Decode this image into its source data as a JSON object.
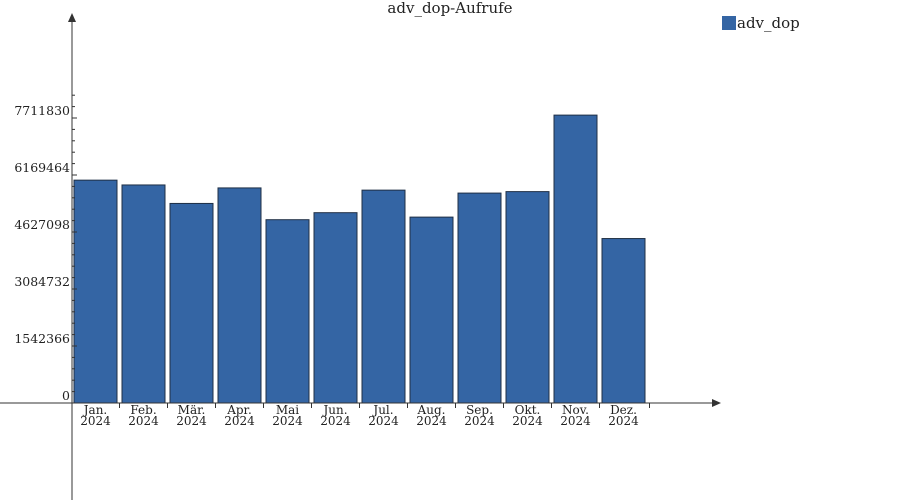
{
  "chart_data": {
    "type": "bar",
    "title": "adv_dop-Aufrufe",
    "xlabel": "",
    "ylabel": "",
    "categories": [
      [
        "Jan.",
        "2024"
      ],
      [
        "Feb.",
        "2024"
      ],
      [
        "Mär.",
        "2024"
      ],
      [
        "Apr.",
        "2024"
      ],
      [
        "Mai",
        "2024"
      ],
      [
        "Jun.",
        "2024"
      ],
      [
        "Jul.",
        "2024"
      ],
      [
        "Aug.",
        "2024"
      ],
      [
        "Sep.",
        "2024"
      ],
      [
        "Okt.",
        "2024"
      ],
      [
        "Nov.",
        "2024"
      ],
      [
        "Dez.",
        "2024"
      ]
    ],
    "series": [
      {
        "name": "adv_dop",
        "color": "#3465a4",
        "values": [
          6030000,
          5900000,
          5400000,
          5820000,
          4960000,
          5150000,
          5760000,
          5030000,
          5680000,
          5720000,
          7790000,
          4450000
        ]
      }
    ],
    "yticks": [
      "0",
      "1542366",
      "3084732",
      "4627098",
      "6169464",
      "7711830"
    ],
    "ylim": [
      0,
      7711830
    ],
    "grid": false,
    "legend_position": "top-right"
  }
}
